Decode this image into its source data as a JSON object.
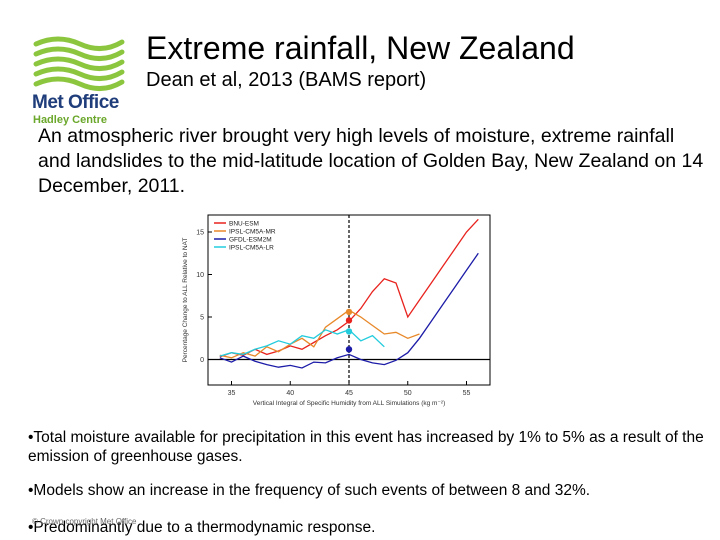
{
  "header": {
    "title": "Extreme rainfall, New Zealand",
    "subtitle": "Dean et al, 2013 (BAMS report)"
  },
  "logo": {
    "line1": "Met Office",
    "line2": "Hadley Centre",
    "green": "#8cc63f",
    "blue": "#1f3d7a"
  },
  "intro": "An atmospheric river brought very high levels of moisture, extreme rainfall and landslides to the mid-latitude location of Golden Bay, New Zealand on 14 December, 2011.",
  "bullets": [
    "•Total moisture available for precipitation in this event has increased by 1%  to 5% as a result of the emission of greenhouse gases.",
    "•Models show an increase in the frequency of such events of between 8 and 32%.",
    "•Predominantly due to a thermodynamic response."
  ],
  "footer": "© Crown copyright   Met Office",
  "chart_data": {
    "type": "line",
    "xlabel": "Vertical Integral of Specific Humidity from ALL Simulations (kg m⁻²)",
    "ylabel": "Percentage Change to ALL Relative to NAT",
    "xlim": [
      33,
      57
    ],
    "ylim": [
      -3,
      17
    ],
    "xticks": [
      35,
      40,
      45,
      50,
      55
    ],
    "yticks": [
      0,
      5,
      10,
      15
    ],
    "threshold_x": 45,
    "series": [
      {
        "name": "BNU-ESM",
        "color": "#e8231e",
        "x": [
          34,
          35,
          36,
          37,
          38,
          39,
          40,
          41,
          42,
          43,
          44,
          45,
          46,
          47,
          48,
          49,
          49.5,
          50,
          51,
          52,
          53,
          54,
          55,
          56
        ],
        "y": [
          0.3,
          0.8,
          0.5,
          1.2,
          0.6,
          1.0,
          1.6,
          1.2,
          2.0,
          2.8,
          3.5,
          4.5,
          6.0,
          8.0,
          9.5,
          9.0,
          7.0,
          5.0,
          7.0,
          9.0,
          11.0,
          13.0,
          15.0,
          16.5
        ]
      },
      {
        "name": "IPSL-CM5A-MR",
        "color": "#e8892a",
        "x": [
          34,
          35,
          36,
          37,
          38,
          39,
          40,
          41,
          42,
          43,
          44,
          45,
          46,
          47,
          48,
          49,
          50,
          51
        ],
        "y": [
          0.5,
          0.2,
          0.8,
          0.4,
          1.5,
          0.9,
          1.8,
          2.5,
          1.5,
          3.8,
          4.8,
          5.8,
          5.0,
          4.0,
          3.0,
          3.2,
          2.5,
          3.0
        ]
      },
      {
        "name": "GFDL-ESM2M",
        "color": "#1c1ca8",
        "x": [
          34,
          35,
          36,
          37,
          38,
          39,
          40,
          41,
          42,
          43,
          44,
          45,
          46,
          47,
          48,
          49,
          50,
          51,
          52,
          53,
          54,
          55,
          56
        ],
        "y": [
          0.2,
          -0.3,
          0.4,
          -0.2,
          -0.6,
          -0.9,
          -0.7,
          -1.0,
          -0.3,
          -0.4,
          0.2,
          0.6,
          0.0,
          -0.4,
          -0.6,
          -0.1,
          0.8,
          2.5,
          4.5,
          6.5,
          8.5,
          10.5,
          12.5
        ]
      },
      {
        "name": "IPSL-CM5A-LR",
        "color": "#22ccdd",
        "x": [
          34,
          35,
          36,
          37,
          38,
          39,
          40,
          41,
          42,
          43,
          44,
          45,
          46,
          47,
          48
        ],
        "y": [
          0.4,
          0.8,
          0.6,
          1.2,
          1.6,
          2.2,
          1.8,
          2.8,
          2.5,
          3.5,
          3.0,
          3.5,
          2.2,
          2.8,
          1.5
        ]
      }
    ],
    "markers": [
      {
        "series": "BNU-ESM",
        "x": 45,
        "y": 4.6,
        "color": "#e8231e"
      },
      {
        "series": "IPSL-CM5A-MR",
        "x": 45,
        "y": 5.6,
        "color": "#e8892a"
      },
      {
        "series": "IPSL-CM5A-LR",
        "x": 45,
        "y": 3.3,
        "color": "#22ccdd"
      },
      {
        "series": "GFDL-ESM2M",
        "x": 45,
        "y": 1.2,
        "color": "#1c1ca8"
      }
    ]
  }
}
